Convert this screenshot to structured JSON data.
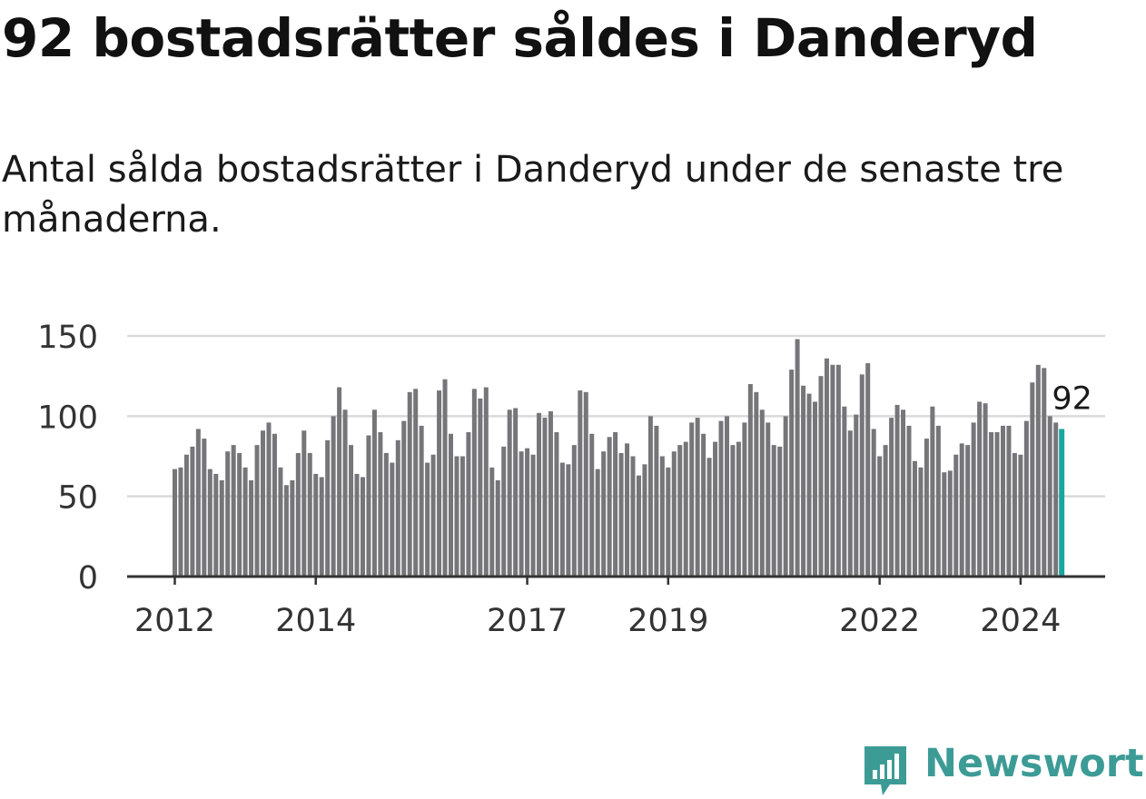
{
  "page": {
    "title": "92 bostadsrätter såldes i Danderyd",
    "subtitle": "Antal sålda bostadsrätter i Danderyd under de senaste tre månaderna."
  },
  "brand": {
    "name": "Newsworthy",
    "color": "#3d9b96",
    "icon": "newsworthy-logo-icon"
  },
  "colors": {
    "bar": "#767579",
    "highlight": "#1aa69c",
    "grid": "#d9d9d9",
    "axis": "#333333"
  },
  "chart_data": {
    "type": "bar",
    "title": "92 bostadsrätter såldes i Danderyd",
    "xlabel": "",
    "ylabel": "",
    "ylim": [
      0,
      150
    ],
    "yticks": [
      0,
      50,
      100,
      150
    ],
    "grid": true,
    "x_start": "2012-01",
    "xticks": [
      {
        "label": "2012",
        "index": 0
      },
      {
        "label": "2014",
        "index": 24
      },
      {
        "label": "2017",
        "index": 60
      },
      {
        "label": "2019",
        "index": 84
      },
      {
        "label": "2022",
        "index": 120
      },
      {
        "label": "2024",
        "index": 144
      }
    ],
    "highlight_label": "92",
    "values": [
      67,
      68,
      76,
      81,
      92,
      86,
      67,
      64,
      60,
      78,
      82,
      77,
      68,
      60,
      82,
      91,
      96,
      89,
      68,
      57,
      60,
      77,
      91,
      77,
      64,
      62,
      85,
      100,
      118,
      104,
      82,
      64,
      62,
      88,
      104,
      90,
      77,
      71,
      85,
      97,
      115,
      117,
      94,
      71,
      76,
      116,
      123,
      89,
      75,
      75,
      90,
      117,
      111,
      118,
      68,
      60,
      81,
      104,
      105,
      78,
      80,
      76,
      102,
      99,
      103,
      90,
      71,
      70,
      82,
      116,
      115,
      89,
      67,
      78,
      87,
      90,
      77,
      83,
      75,
      63,
      70,
      100,
      94,
      75,
      68,
      78,
      82,
      84,
      96,
      99,
      89,
      74,
      84,
      97,
      100,
      82,
      84,
      96,
      120,
      115,
      104,
      96,
      82,
      81,
      100,
      129,
      148,
      119,
      114,
      109,
      125,
      136,
      132,
      132,
      106,
      91,
      101,
      126,
      133,
      92,
      75,
      82,
      99,
      107,
      104,
      94,
      72,
      68,
      86,
      106,
      94,
      65,
      66,
      76,
      83,
      82,
      96,
      109,
      108,
      90,
      90,
      94,
      94,
      77,
      76,
      97,
      121,
      132,
      130,
      100,
      96,
      92
    ]
  }
}
